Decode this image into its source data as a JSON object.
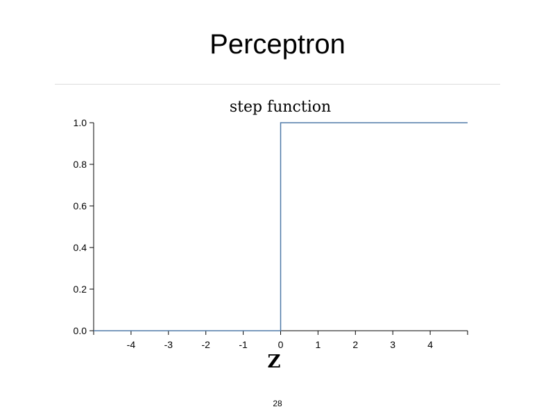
{
  "slide": {
    "title": "Perceptron",
    "page_number": "28"
  },
  "colors": {
    "line": "#4e79a7",
    "axis": "#000000",
    "rule": "#dcdcdc"
  },
  "chart_data": {
    "type": "line",
    "title": "step function",
    "xlabel": "Z",
    "ylabel": "",
    "xlim": [
      -5,
      5
    ],
    "ylim": [
      0,
      1
    ],
    "x_ticks": [
      -4,
      -3,
      -2,
      -1,
      0,
      1,
      2,
      3,
      4
    ],
    "x_tick_labels": [
      "-4",
      "-3",
      "-2",
      "-1",
      "0",
      "1",
      "2",
      "3",
      "4"
    ],
    "y_ticks": [
      0,
      0.2,
      0.4,
      0.6,
      0.8,
      1.0
    ],
    "y_tick_labels": [
      "0.0",
      "0.2",
      "0.4",
      "0.6",
      "0.8",
      "1.0"
    ],
    "series": [
      {
        "x": [
          -5,
          0,
          0,
          5
        ],
        "y": [
          0,
          0,
          1,
          1
        ]
      }
    ],
    "grid": false
  }
}
